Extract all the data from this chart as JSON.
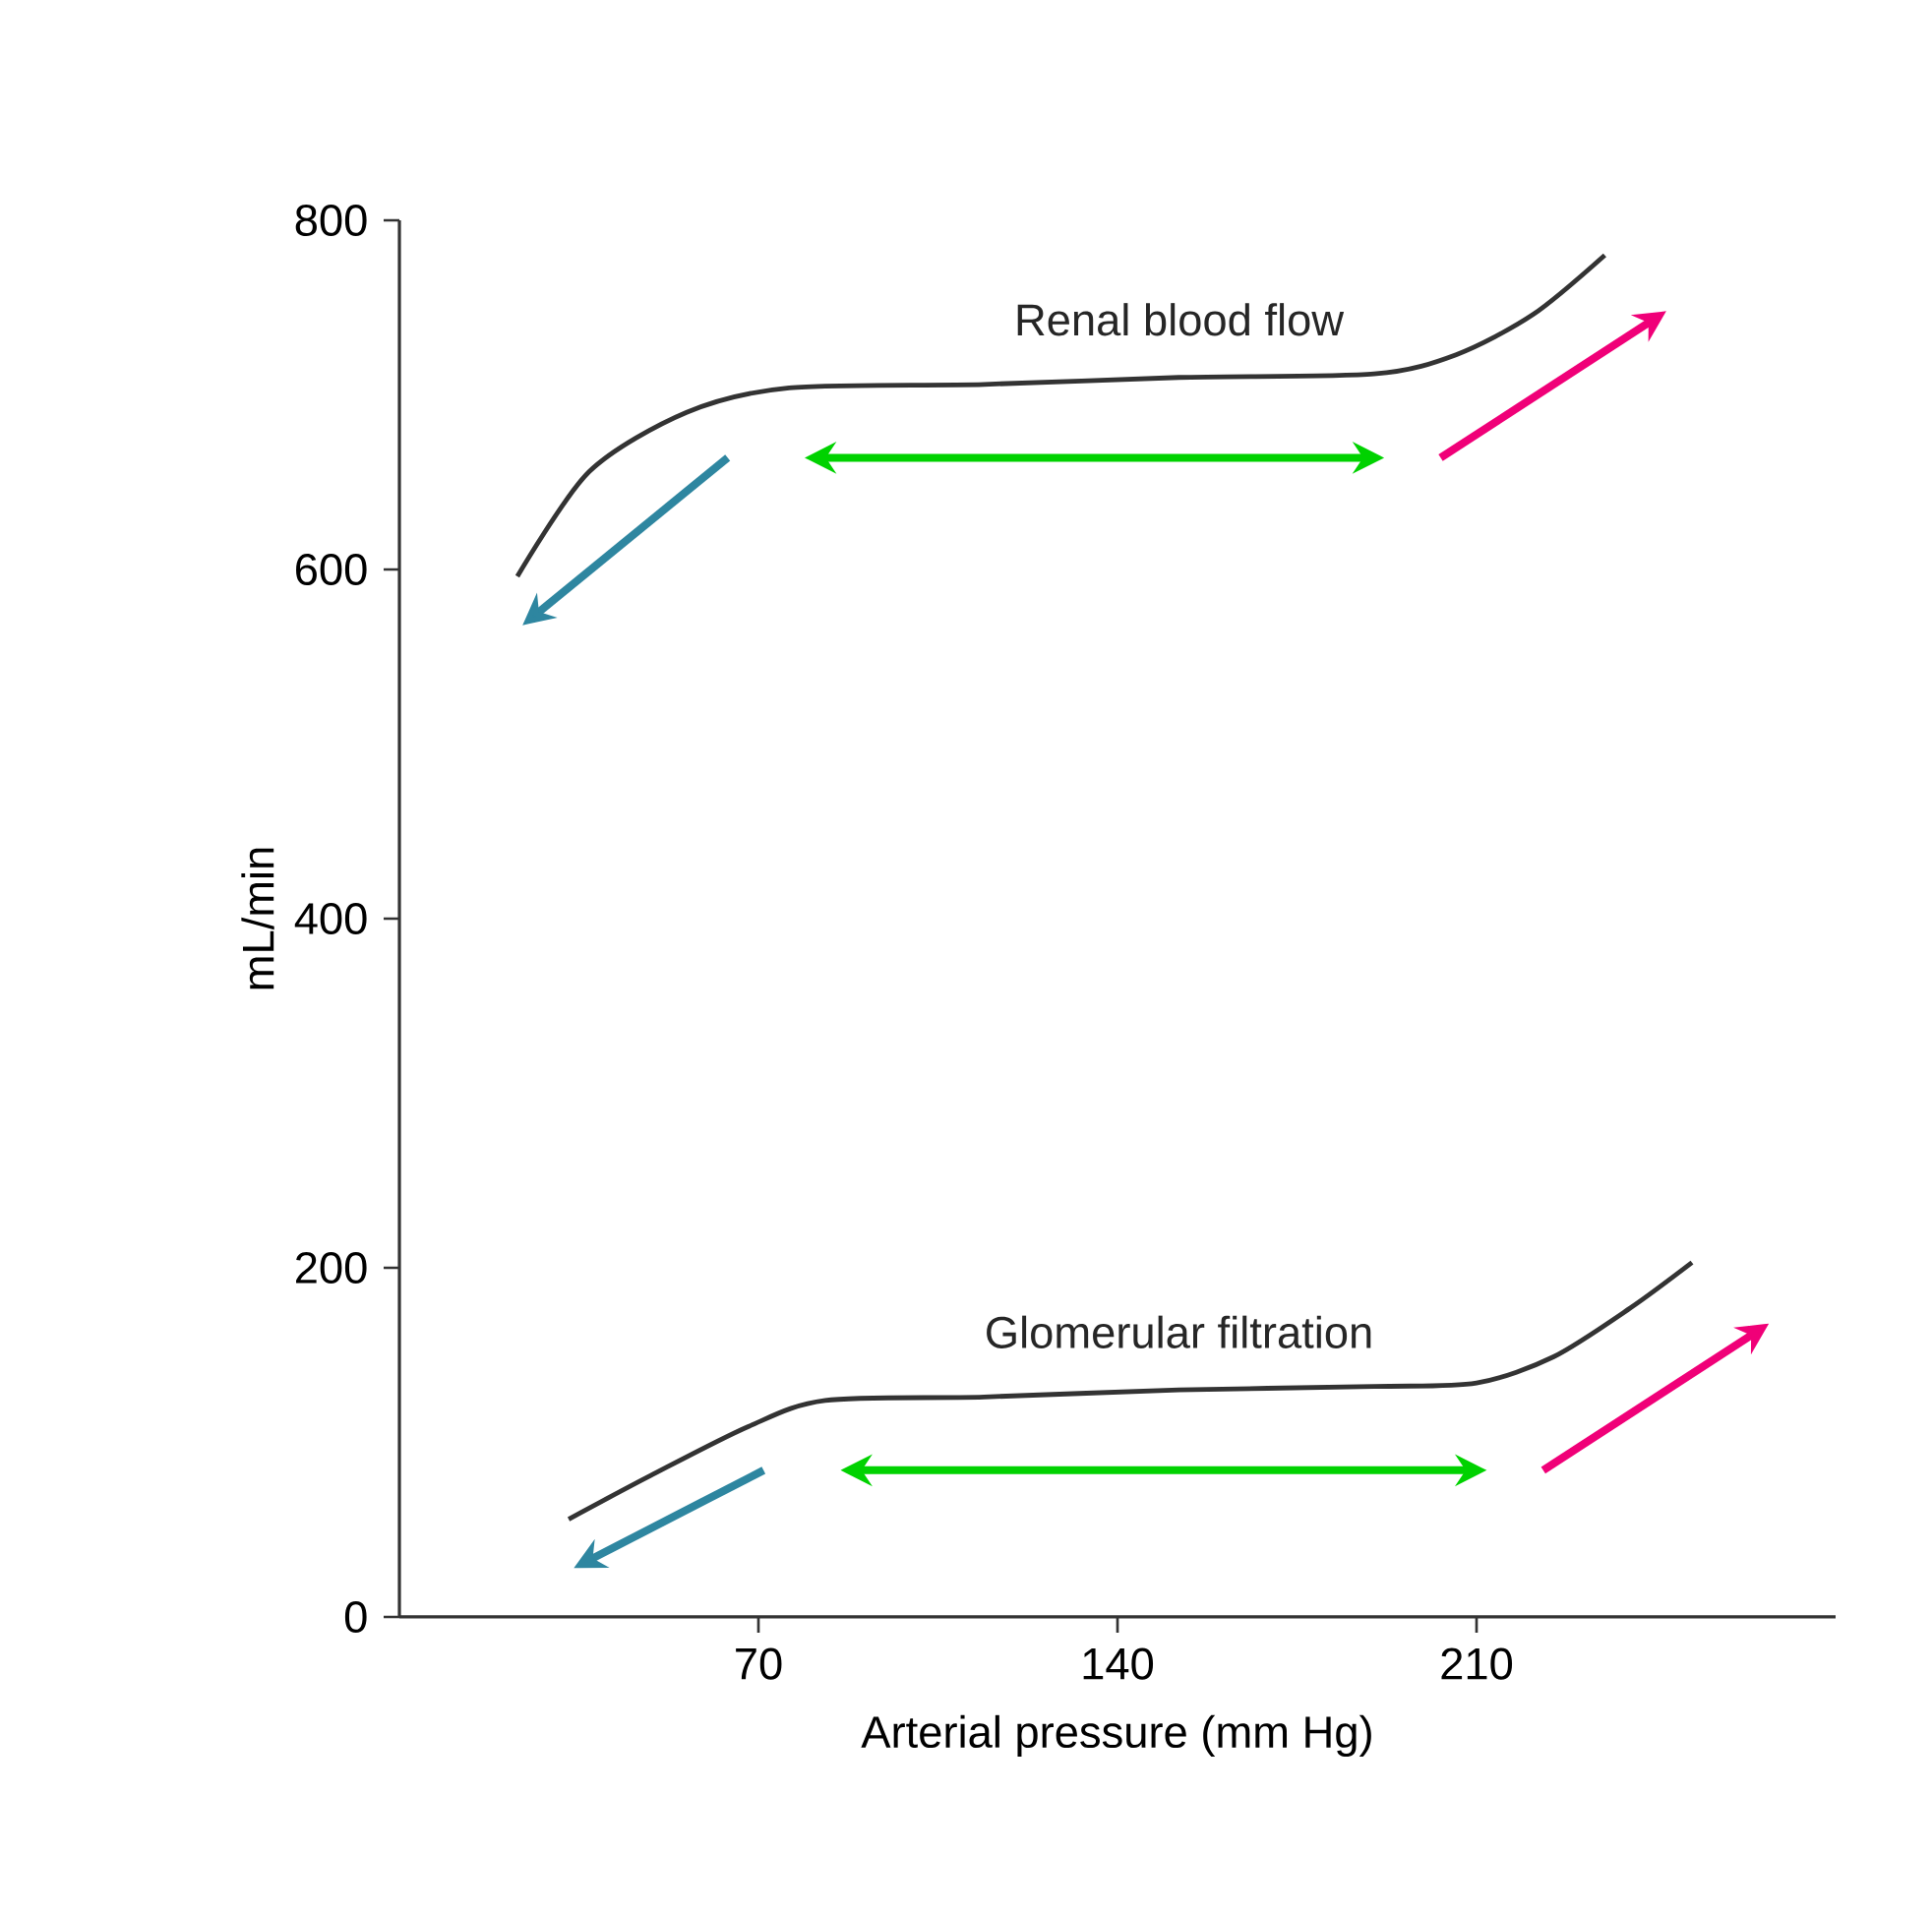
{
  "chart_data": {
    "type": "line",
    "xlabel": "Arterial pressure (mm Hg)",
    "ylabel": "mL/min",
    "xlim": [
      0,
      280
    ],
    "ylim": [
      0,
      800
    ],
    "xticks": [
      70,
      140,
      210
    ],
    "yticks": [
      0,
      200,
      400,
      600,
      800
    ],
    "grid": false,
    "marker": "none",
    "line_style": "solid",
    "series": [
      {
        "name": "Renal blood flow",
        "color": "#333333",
        "x": [
          23,
          37,
          56,
          76,
          114,
          152,
          190,
          206,
          221,
          235
        ],
        "values": [
          596,
          656,
          690,
          704,
          706,
          710,
          712,
          723,
          746,
          780
        ]
      },
      {
        "name": "Glomerular filtration",
        "color": "#333333",
        "x": [
          33,
          49,
          68,
          83,
          114,
          152,
          190,
          210,
          225,
          240,
          252
        ],
        "values": [
          56,
          81,
          109,
          124,
          126,
          130,
          132,
          134,
          149,
          177,
          203
        ]
      }
    ]
  }
}
